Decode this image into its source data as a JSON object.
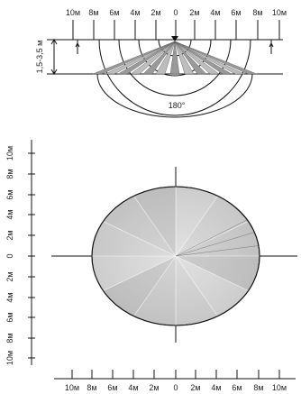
{
  "side_view": {
    "top_ticks": [
      "10м",
      "8м",
      "6м",
      "4м",
      "2м",
      "0",
      "2м",
      "4м",
      "6м",
      "8м",
      "10м"
    ],
    "height_label": "1,5-3,5 м",
    "angle_label": "180°"
  },
  "top_view": {
    "left_ticks": [
      "10м",
      "8м",
      "6м",
      "4м",
      "2м",
      "0",
      "2м",
      "4м",
      "6м",
      "8м",
      "10м"
    ],
    "bottom_ticks": [
      "10м",
      "8м",
      "6м",
      "4м",
      "2м",
      "0",
      "2м",
      "4м",
      "6м",
      "8м",
      "10м"
    ]
  },
  "colors": {
    "line": "#111111",
    "fill_light": "#f2f2f2",
    "fill_dark": "#b8b8b8"
  }
}
